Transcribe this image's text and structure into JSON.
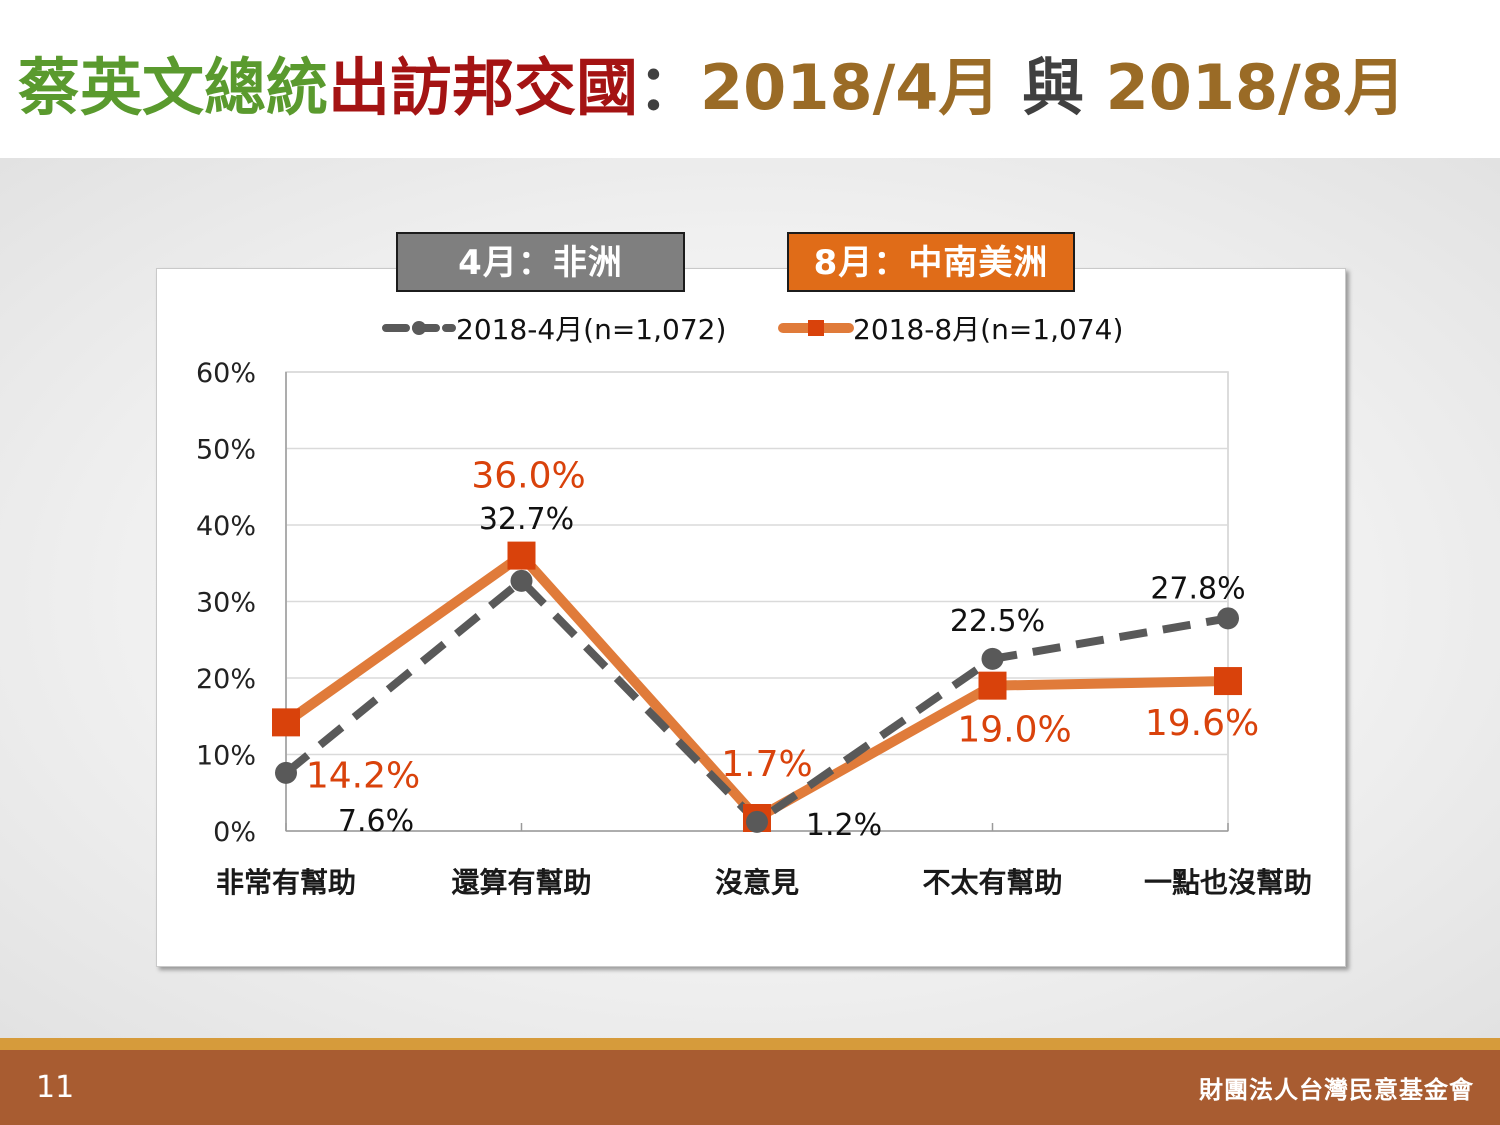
{
  "title": {
    "part1": "蔡英文總統",
    "part2": "出訪邦交國",
    "sep": "：",
    "part3": "2018/4月",
    "mid": "與",
    "part4": "2018/8月"
  },
  "tags": {
    "april": "4月：非洲",
    "august": "8月：中南美洲"
  },
  "colors": {
    "title_green": "#5a9a2e",
    "title_red": "#a41313",
    "title_brown": "#9a6b26",
    "april_series": "#595959",
    "august_series": "#e07b3a",
    "august_marker": "#d9420b",
    "august_label": "#d9420b",
    "footer_bg": "#a85c31",
    "footer_stripe": "#d69b3b"
  },
  "chart_data": {
    "type": "line",
    "categories": [
      "非常有幫助",
      "還算有幫助",
      "沒意見",
      "不太有幫助",
      "一點也沒幫助"
    ],
    "yticks": [
      "0%",
      "10%",
      "20%",
      "30%",
      "40%",
      "50%",
      "60%"
    ],
    "ylim": [
      0,
      60
    ],
    "grid": true,
    "legend_position": "top",
    "series": [
      {
        "name": "2018-4月(n=1,072)",
        "values": [
          7.6,
          32.7,
          1.2,
          22.5,
          27.8
        ],
        "labels": [
          "7.6%",
          "32.7%",
          "1.2%",
          "22.5%",
          "27.8%"
        ],
        "style": "dashed",
        "marker": "circle"
      },
      {
        "name": "2018-8月(n=1,074)",
        "values": [
          14.2,
          36.0,
          1.7,
          19.0,
          19.6
        ],
        "labels": [
          "14.2%",
          "36.0%",
          "1.7%",
          "19.0%",
          "19.6%"
        ],
        "style": "solid",
        "marker": "square"
      }
    ]
  },
  "footer": {
    "page": "11",
    "org": "財團法人台灣民意基金會"
  }
}
